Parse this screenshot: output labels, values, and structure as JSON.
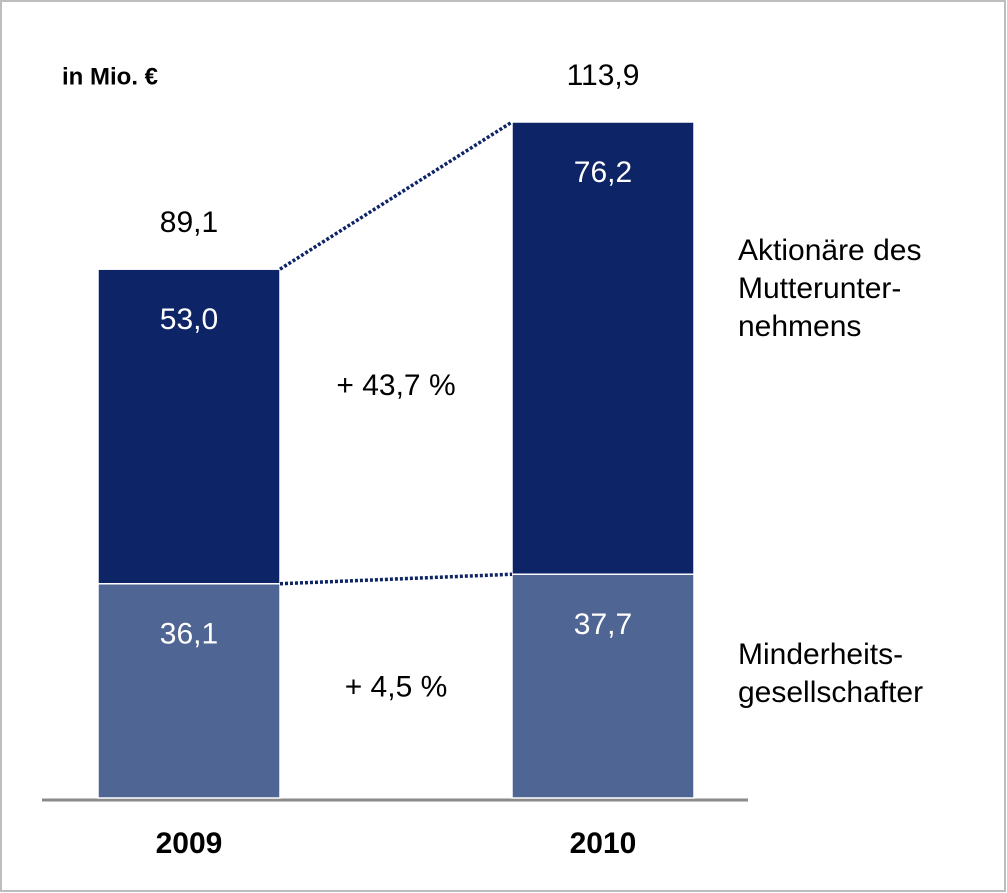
{
  "chart_data": {
    "type": "stacked-bar",
    "unit_label": "in Mio. €",
    "categories": [
      "2009",
      "2010"
    ],
    "series": [
      {
        "name": "Minderheits-gesellschafter",
        "color": "#4f6593",
        "values": [
          36.1,
          37.7
        ],
        "value_labels": [
          "36,1",
          "37,7"
        ]
      },
      {
        "name": "Aktionäre des Mutterunter-nehmens",
        "color": "#0d2466",
        "values": [
          53.0,
          76.2
        ],
        "value_labels": [
          "53,0",
          "76,2"
        ]
      }
    ],
    "totals": [
      89.1,
      113.9
    ],
    "total_labels": [
      "89,1",
      "113,9"
    ],
    "annotations": [
      "+ 4,5 %",
      "+ 43,7 %"
    ]
  }
}
